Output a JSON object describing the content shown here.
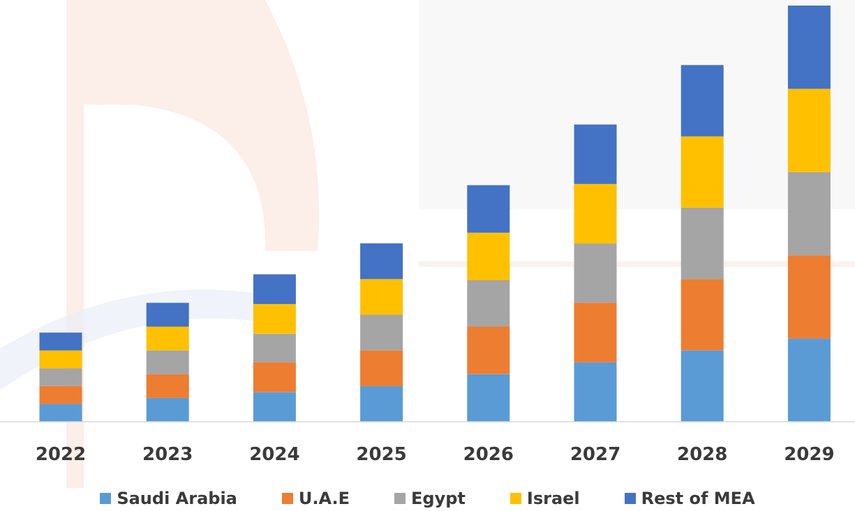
{
  "chart_data": {
    "type": "bar",
    "stacked": true,
    "categories": [
      "2022",
      "2023",
      "2024",
      "2025",
      "2026",
      "2027",
      "2028",
      "2029"
    ],
    "series": [
      {
        "name": "Saudi Arabia",
        "color": "#5B9BD5",
        "values": [
          1.5,
          2.0,
          2.5,
          3.0,
          4.0,
          5.0,
          6.0,
          7.0
        ]
      },
      {
        "name": "U.A.E",
        "color": "#ED7D31",
        "values": [
          1.5,
          2.0,
          2.5,
          3.0,
          4.0,
          5.0,
          6.0,
          7.0
        ]
      },
      {
        "name": "Egypt",
        "color": "#A5A5A5",
        "values": [
          1.5,
          2.0,
          2.4,
          3.0,
          3.9,
          5.0,
          6.0,
          7.0
        ]
      },
      {
        "name": "Israel",
        "color": "#FFC000",
        "values": [
          1.5,
          2.0,
          2.5,
          3.0,
          4.0,
          5.0,
          6.0,
          7.0
        ]
      },
      {
        "name": "Rest of MEA",
        "color": "#4472C4",
        "values": [
          1.5,
          2.0,
          2.5,
          3.0,
          4.0,
          5.0,
          6.0,
          7.0
        ]
      }
    ],
    "ylim": [
      0,
      35
    ],
    "y_axis_visible": false,
    "grid": false,
    "legend_position": "bottom",
    "title": "",
    "xlabel": "",
    "ylabel": ""
  }
}
